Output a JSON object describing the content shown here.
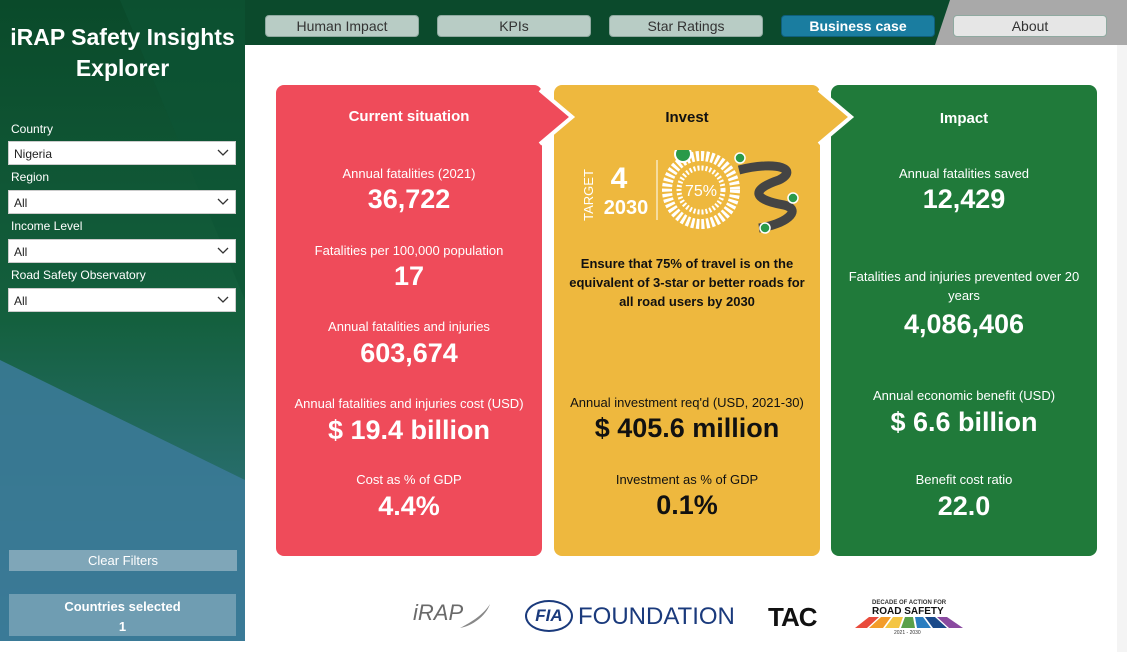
{
  "sidebar": {
    "title": "iRAP Safety Insights Explorer",
    "filters": [
      {
        "label": "Country",
        "value": "Nigeria"
      },
      {
        "label": "Region",
        "value": "All"
      },
      {
        "label": "Income Level",
        "value": "All"
      },
      {
        "label": "Road Safety Observatory",
        "value": "All"
      }
    ],
    "clear_button": "Clear Filters",
    "selected": {
      "label": "Countries selected",
      "value": "1"
    }
  },
  "tabs": [
    "Human Impact",
    "KPIs",
    "Star Ratings",
    "Business case",
    "About"
  ],
  "panels": [
    {
      "title": "Current situation",
      "metrics": [
        {
          "label": "Annual fatalities (2021)",
          "value": "36,722"
        },
        {
          "label": "Fatalities per 100,000 population",
          "value": "17"
        },
        {
          "label": "Annual fatalities and injuries",
          "value": "603,674"
        },
        {
          "label": "Annual fatalities and injuries cost (USD)",
          "value": "$ 19.4 billion"
        },
        {
          "label": "Cost as % of GDP",
          "value": "4.4%"
        }
      ]
    },
    {
      "title": "Invest",
      "target": {
        "caption": "TARGET",
        "number": "4",
        "year": "2030",
        "percent": "75%"
      },
      "statement": "Ensure that 75% of travel is on the equivalent of 3-star or better roads for all road users by 2030",
      "metrics": [
        {
          "label": "Annual investment req'd (USD, 2021-30)",
          "value": "$ 405.6 million"
        },
        {
          "label": "Investment as % of GDP",
          "value": "0.1%"
        }
      ]
    },
    {
      "title": "Impact",
      "metrics": [
        {
          "label": "Annual fatalities saved",
          "value": "12,429"
        },
        {
          "label": "Fatalities and injuries prevented over 20 years",
          "value": "4,086,406"
        },
        {
          "label": "Annual economic benefit (USD)",
          "value": "$ 6.6 billion"
        },
        {
          "label": "Benefit cost ratio",
          "value": "22.0"
        }
      ]
    }
  ],
  "logos": {
    "irap": "iRAP",
    "fia": "FIA",
    "fia_text": "FOUNDATION",
    "tac": "TAC",
    "decade_top": "DECADE OF ACTION FOR",
    "decade_main": "ROAD SAFETY",
    "decade_years": "2021 - 2030"
  }
}
